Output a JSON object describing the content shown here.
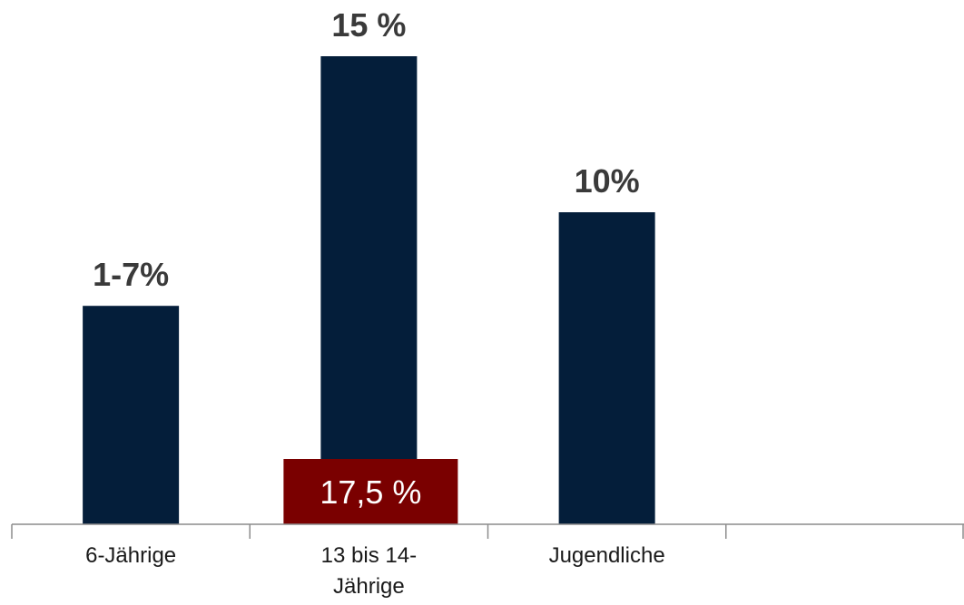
{
  "chart_data": {
    "type": "bar",
    "categories": [
      [
        "6-Jährige"
      ],
      [
        "13 bis 14-",
        "Jährige"
      ],
      [
        "Jugendliche"
      ],
      [
        ""
      ]
    ],
    "values": [
      7,
      15,
      10,
      null
    ],
    "data_labels": [
      "1-7%",
      "15 %",
      "10%",
      ""
    ],
    "ylim": [
      0,
      15
    ],
    "grid": false,
    "colors": {
      "bar": "#041e3a",
      "callout": "#7a0000"
    },
    "annotations": [
      {
        "category_index": 1,
        "text": "17,5 %"
      }
    ]
  }
}
